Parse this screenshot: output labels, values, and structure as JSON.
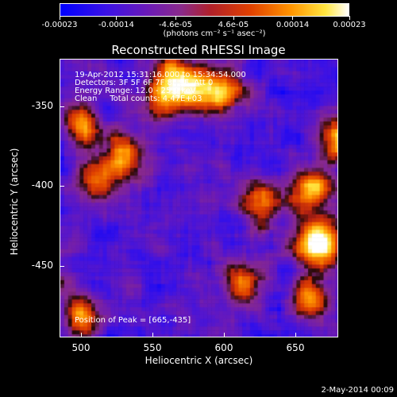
{
  "colorbar": {
    "ticks": [
      "-0.00023",
      "-0.00014",
      "-4.6e-05",
      "4.6e-05",
      "0.00014",
      "0.00023"
    ],
    "unit_label": "(photons cm⁻² s⁻¹ asec⁻²)"
  },
  "chart_data": {
    "type": "heatmap",
    "title": "Reconstructed RHESSI Image",
    "xlabel": "Heliocentric X (arcsec)",
    "ylabel": "Heliocentric Y (arcsec)",
    "xlim": [
      485,
      680
    ],
    "ylim": [
      -495,
      -320
    ],
    "xticks": [
      "500",
      "550",
      "600",
      "650"
    ],
    "yticks": [
      "-350",
      "-400",
      "-450"
    ],
    "color_range": [
      -0.00023,
      0.00023
    ],
    "annotations": [
      "19-Apr-2012 15:31:16.000 to 15:34:54.000",
      "Detectors: 3F 5F 6F 7F 8F 9F, Att 0",
      "Energy Range: 12.0 - 25.0 keV",
      "Clean     Total counts: 4.47E+03"
    ],
    "peak_label": "Position of Peak = [665,-435]",
    "peak": {
      "x": 665,
      "y": -435
    },
    "bright_sources": [
      {
        "x": 580,
        "y": -340
      },
      {
        "x": 565,
        "y": -330
      },
      {
        "x": 660,
        "y": -400
      },
      {
        "x": 665,
        "y": -435
      },
      {
        "x": 625,
        "y": -410
      },
      {
        "x": 500,
        "y": -360
      },
      {
        "x": 510,
        "y": -395
      },
      {
        "x": 530,
        "y": -380
      },
      {
        "x": 660,
        "y": -470
      },
      {
        "x": 615,
        "y": -460
      },
      {
        "x": 500,
        "y": -480
      },
      {
        "x": 600,
        "y": -340
      },
      {
        "x": 680,
        "y": -370
      },
      {
        "x": 555,
        "y": -345
      }
    ]
  },
  "footer": {
    "date": "2-May-2014 00:09"
  }
}
